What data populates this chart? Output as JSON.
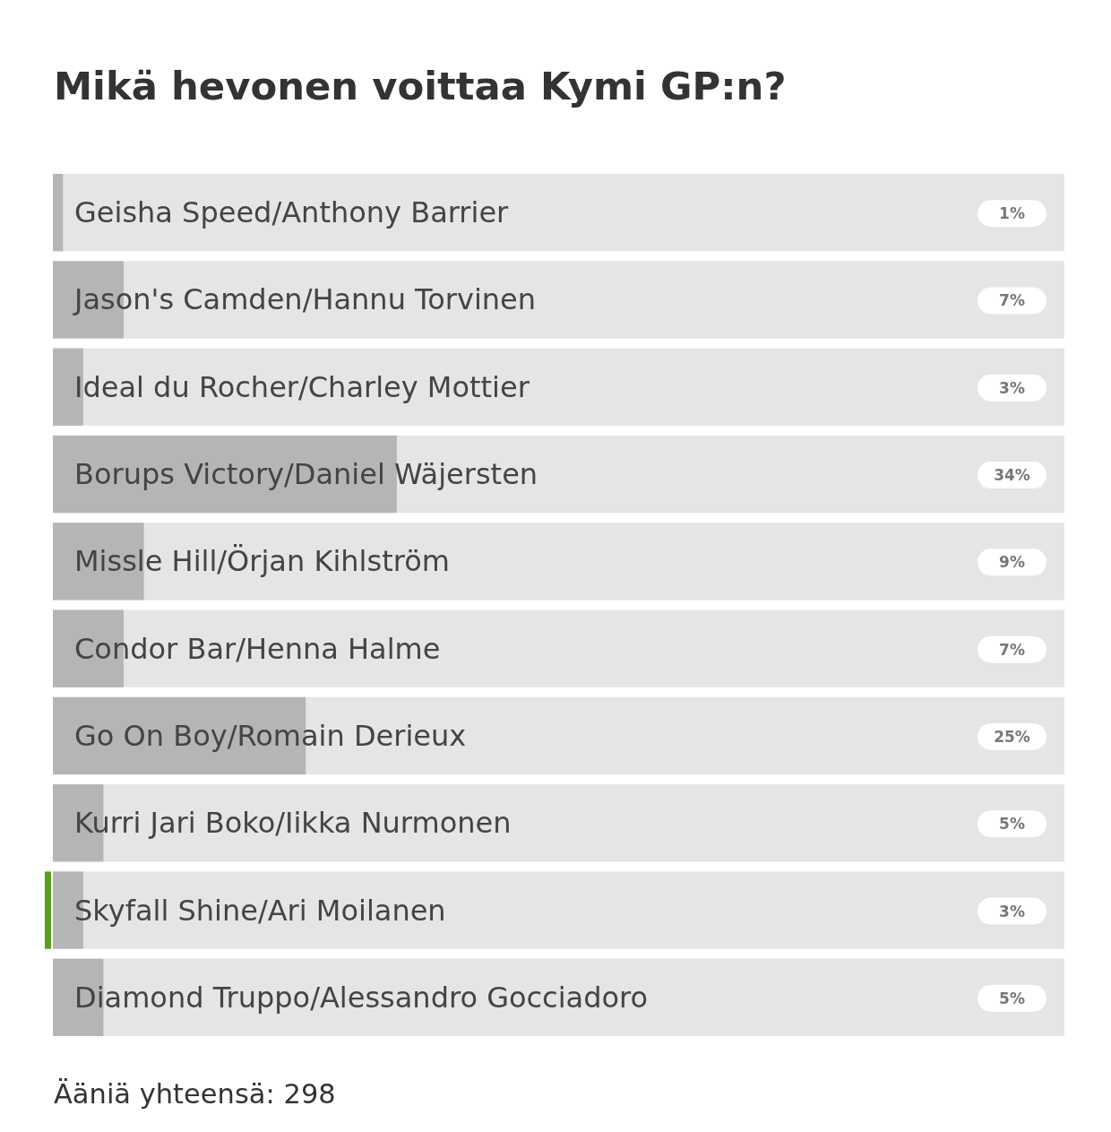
{
  "chart_data": {
    "type": "bar",
    "orientation": "horizontal",
    "title": "Mikä hevonen voittaa Kymi GP:n?",
    "categories": [
      "Geisha Speed/Anthony Barrier",
      "Jason's Camden/Hannu Torvinen",
      "Ideal du Rocher/Charley Mottier",
      "Borups Victory/Daniel Wäjersten",
      "Missle Hill/Örjan Kihlström",
      "Condor Bar/Henna Halme",
      "Go On Boy/Romain Derieux",
      "Kurri Jari Boko/Iikka Nurmonen",
      "Skyfall Shine/Ari Moilanen",
      "Diamond Truppo/Alessandro Gocciadoro"
    ],
    "values": [
      1,
      7,
      3,
      34,
      9,
      7,
      25,
      5,
      3,
      5
    ],
    "value_labels": [
      "1%",
      "7%",
      "3%",
      "34%",
      "9%",
      "7%",
      "25%",
      "5%",
      "3%",
      "5%"
    ],
    "color": "#b5b5b5",
    "xlim": [
      0,
      100
    ],
    "tick_labels": "y",
    "annotations": [
      "Ääniä yhteensä: 298"
    ]
  }
}
